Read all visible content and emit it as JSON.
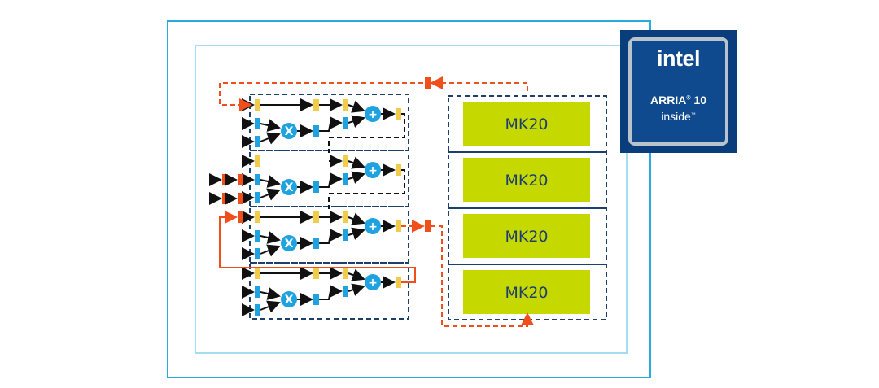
{
  "memory_blocks": [
    {
      "label": "MK20"
    },
    {
      "label": "MK20"
    },
    {
      "label": "MK20"
    },
    {
      "label": "MK20"
    }
  ],
  "dsp_blocks": [
    {
      "multiply_symbol": "X",
      "add_symbol": "+"
    },
    {
      "multiply_symbol": "X",
      "add_symbol": "+"
    },
    {
      "multiply_symbol": "X",
      "add_symbol": "+"
    },
    {
      "multiply_symbol": "X",
      "add_symbol": "+"
    }
  ],
  "logo": {
    "brand": "intel",
    "product": "ARRIA",
    "version": "10",
    "tagline": "inside"
  },
  "colors": {
    "outer_frame": "#29abe2",
    "inner_frame": "#a6dcf2",
    "dashed_box": "#1d3f6e",
    "memory_fill": "#c5d800",
    "register_yellow": "#f0cc4a",
    "register_blue": "#1fa3e0",
    "operator": "#1fa3e0",
    "pipeline_orange": "#f04e1a",
    "logo_bg": "#0a3d7c"
  }
}
